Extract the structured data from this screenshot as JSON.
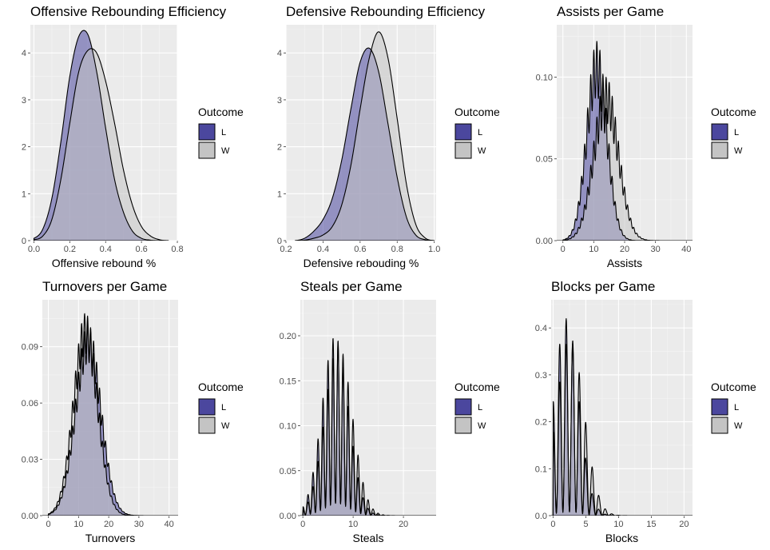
{
  "colors": {
    "panel_bg": "#ebebeb",
    "grid_major": "#ffffff",
    "loss_fill": "#4b479e",
    "win_fill": "#c4c4c4",
    "overlap_fill": "#9590a8"
  },
  "chart_data": [
    {
      "type": "area",
      "title": "Offensive Rebounding Efficiency",
      "xlabel": "Offensive rebound %",
      "ylabel": "",
      "xlim": [
        -0.02,
        0.8
      ],
      "ylim": [
        0,
        4.6
      ],
      "xticks": [
        0.0,
        0.2,
        0.4,
        0.6,
        0.8
      ],
      "xtick_labels": [
        "0.0",
        "0.2",
        "0.4",
        "0.6",
        "0.8"
      ],
      "yticks": [
        0,
        1,
        2,
        3,
        4
      ],
      "ytick_labels": [
        "0",
        "1",
        "2",
        "3",
        "4"
      ],
      "legend": {
        "title": "Outcome",
        "entries": [
          "L",
          "W"
        ],
        "position": "right"
      },
      "series": [
        {
          "name": "L",
          "x": [
            0.0,
            0.05,
            0.1,
            0.15,
            0.2,
            0.25,
            0.3,
            0.35,
            0.4,
            0.45,
            0.5,
            0.55,
            0.6,
            0.65,
            0.7,
            0.75
          ],
          "values": [
            0.05,
            0.25,
            0.9,
            2.1,
            3.5,
            4.35,
            4.4,
            3.6,
            2.4,
            1.3,
            0.6,
            0.2,
            0.05,
            0.01,
            0.0,
            0.0
          ]
        },
        {
          "name": "W",
          "x": [
            0.0,
            0.05,
            0.1,
            0.15,
            0.2,
            0.25,
            0.3,
            0.35,
            0.4,
            0.45,
            0.5,
            0.55,
            0.6,
            0.65,
            0.7,
            0.75
          ],
          "values": [
            0.02,
            0.1,
            0.45,
            1.3,
            2.5,
            3.6,
            4.05,
            4.0,
            3.4,
            2.5,
            1.5,
            0.75,
            0.3,
            0.1,
            0.02,
            0.0
          ]
        }
      ]
    },
    {
      "type": "area",
      "title": "Defensive Rebounding Efficiency",
      "xlabel": "Defensive rebouding %",
      "ylabel": "",
      "xlim": [
        0.2,
        1.01
      ],
      "ylim": [
        0,
        4.6
      ],
      "xticks": [
        0.2,
        0.4,
        0.6,
        0.8,
        1.0
      ],
      "xtick_labels": [
        "0.2",
        "0.4",
        "0.6",
        "0.8",
        "1.0"
      ],
      "yticks": [
        0,
        1,
        2,
        3,
        4
      ],
      "ytick_labels": [
        "0",
        "1",
        "2",
        "3",
        "4"
      ],
      "legend": {
        "title": "Outcome",
        "entries": [
          "L",
          "W"
        ],
        "position": "right"
      },
      "series": [
        {
          "name": "L",
          "x": [
            0.25,
            0.3,
            0.35,
            0.4,
            0.45,
            0.5,
            0.55,
            0.6,
            0.65,
            0.7,
            0.75,
            0.8,
            0.85,
            0.9,
            0.95,
            1.0
          ],
          "values": [
            0.0,
            0.05,
            0.2,
            0.45,
            0.9,
            1.7,
            2.8,
            3.8,
            4.1,
            3.6,
            2.5,
            1.35,
            0.5,
            0.12,
            0.02,
            0.0
          ]
        },
        {
          "name": "W",
          "x": [
            0.25,
            0.3,
            0.35,
            0.4,
            0.45,
            0.5,
            0.55,
            0.6,
            0.65,
            0.7,
            0.75,
            0.8,
            0.85,
            0.9,
            0.95,
            1.0
          ],
          "values": [
            0.0,
            0.01,
            0.05,
            0.12,
            0.3,
            0.75,
            1.6,
            2.8,
            3.9,
            4.45,
            3.9,
            2.6,
            1.2,
            0.35,
            0.06,
            0.0
          ]
        }
      ]
    },
    {
      "type": "area",
      "title": "Assists per Game",
      "xlabel": "Assists",
      "ylabel": "",
      "xlim": [
        -2,
        42
      ],
      "ylim": [
        0,
        0.132
      ],
      "xticks": [
        0,
        10,
        20,
        30,
        40
      ],
      "xtick_labels": [
        "0",
        "10",
        "20",
        "30",
        "40"
      ],
      "yticks": [
        0,
        0.05,
        0.1
      ],
      "ytick_labels": [
        "0.00",
        "0.05",
        "0.10"
      ],
      "legend": {
        "title": "Outcome",
        "entries": [
          "L",
          "W"
        ],
        "position": "right"
      },
      "series": [
        {
          "name": "L",
          "distribution": "discrete",
          "mean": 11,
          "sd": 3.3,
          "amplitude": 0.122,
          "ripple": 0.28,
          "xmin": 0,
          "xmax": 40
        },
        {
          "name": "W",
          "distribution": "discrete",
          "mean": 14,
          "sd": 4.0,
          "amplitude": 0.1,
          "ripple": 0.28,
          "xmin": 0,
          "xmax": 40
        }
      ]
    },
    {
      "type": "area",
      "title": "Turnovers per Game",
      "xlabel": "Turnovers",
      "ylabel": "",
      "xlim": [
        -2,
        43
      ],
      "ylim": [
        0,
        0.115
      ],
      "xticks": [
        0,
        10,
        20,
        30,
        40
      ],
      "xtick_labels": [
        "0",
        "10",
        "20",
        "30",
        "40"
      ],
      "yticks": [
        0,
        0.03,
        0.06,
        0.09
      ],
      "ytick_labels": [
        "0.00",
        "0.03",
        "0.06",
        "0.09"
      ],
      "legend": {
        "title": "Outcome",
        "entries": [
          "L",
          "W"
        ],
        "position": "right"
      },
      "series": [
        {
          "name": "L",
          "distribution": "discrete",
          "mean": 13.2,
          "sd": 4.2,
          "amplitude": 0.102,
          "ripple": 0.2,
          "xmin": 0,
          "xmax": 41
        },
        {
          "name": "W",
          "distribution": "discrete",
          "mean": 12.3,
          "sd": 4.0,
          "amplitude": 0.108,
          "ripple": 0.2,
          "xmin": 0,
          "xmax": 41
        }
      ]
    },
    {
      "type": "area",
      "title": "Steals per Game",
      "xlabel": "Steals",
      "ylabel": "",
      "xlim": [
        -0.5,
        26.5
      ],
      "ylim": [
        0,
        0.24
      ],
      "xticks": [
        0,
        10,
        20
      ],
      "xtick_labels": [
        "0",
        "10",
        "20"
      ],
      "yticks": [
        0,
        0.05,
        0.1,
        0.15,
        0.2
      ],
      "ytick_labels": [
        "0.00",
        "0.05",
        "0.10",
        "0.15",
        "0.20"
      ],
      "legend": {
        "title": "Outcome",
        "entries": [
          "L",
          "W"
        ],
        "position": "right"
      },
      "series": [
        {
          "name": "L",
          "distribution": "discrete",
          "mean": 6.4,
          "sd": 2.6,
          "amplitude": 0.2,
          "ripple": 0.93,
          "xmin": 0,
          "xmax": 26
        },
        {
          "name": "W",
          "distribution": "discrete",
          "mean": 7.1,
          "sd": 2.7,
          "amplitude": 0.19,
          "ripple": 0.93,
          "xmin": 0,
          "xmax": 26
        }
      ]
    },
    {
      "type": "area",
      "title": "Blocks per Game",
      "xlabel": "Blocks",
      "ylabel": "",
      "xlim": [
        -0.3,
        21.3
      ],
      "ylim": [
        0,
        0.46
      ],
      "xticks": [
        0,
        5,
        10,
        15,
        20
      ],
      "xtick_labels": [
        "0",
        "5",
        "10",
        "15",
        "20"
      ],
      "yticks": [
        0,
        0.1,
        0.2,
        0.3,
        0.4
      ],
      "ytick_labels": [
        "0.0",
        "0.1",
        "0.2",
        "0.3",
        "0.4"
      ],
      "legend": {
        "title": "Outcome",
        "entries": [
          "L",
          "W"
        ],
        "position": "right"
      },
      "series": [
        {
          "name": "L",
          "distribution": "discrete",
          "mean": 2.0,
          "sd": 1.9,
          "amplitude": 0.42,
          "ripple": 0.98,
          "xmin": 0,
          "xmax": 21
        },
        {
          "name": "W",
          "distribution": "discrete",
          "mean": 2.6,
          "sd": 2.1,
          "amplitude": 0.38,
          "ripple": 0.98,
          "xmin": 0,
          "xmax": 21
        }
      ]
    }
  ]
}
